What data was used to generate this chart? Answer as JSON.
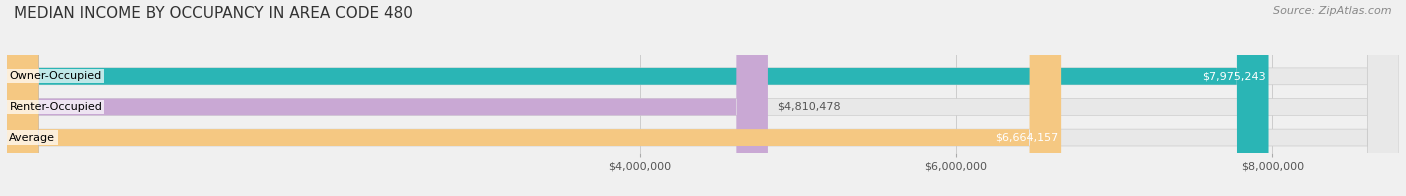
{
  "title": "MEDIAN INCOME BY OCCUPANCY IN AREA CODE 480",
  "source": "Source: ZipAtlas.com",
  "categories": [
    "Owner-Occupied",
    "Renter-Occupied",
    "Average"
  ],
  "values": [
    7975243,
    4810478,
    6664157
  ],
  "bar_colors": [
    "#2ab5b5",
    "#c9a8d4",
    "#f5c882"
  ],
  "label_colors": [
    "#ffffff",
    "#555555",
    "#555555"
  ],
  "value_labels": [
    "$7,975,243",
    "$4,810,478",
    "$6,664,157"
  ],
  "value_label_inside": [
    true,
    false,
    true
  ],
  "xlim": [
    0,
    8800000
  ],
  "xticks": [
    4000000,
    6000000,
    8000000
  ],
  "xtick_labels": [
    "$4,000,000",
    "$6,000,000",
    "$8,000,000"
  ],
  "bar_height": 0.55,
  "background_color": "#f0f0f0",
  "bar_bg_color": "#e8e8e8",
  "title_fontsize": 11,
  "source_fontsize": 8,
  "label_fontsize": 8,
  "value_fontsize": 8,
  "tick_fontsize": 8
}
